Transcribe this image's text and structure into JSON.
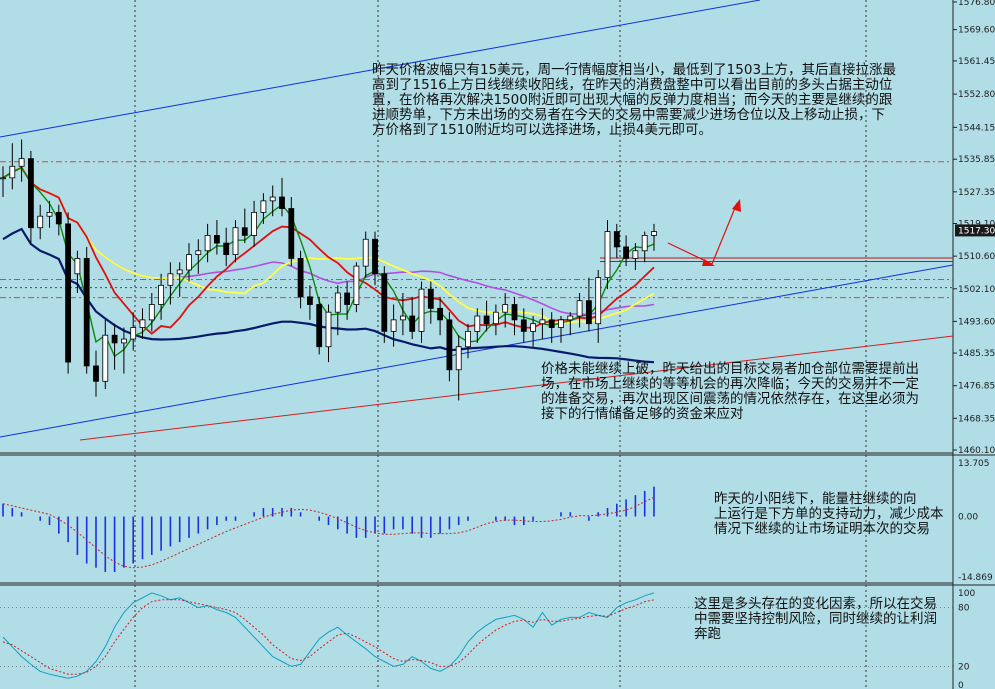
{
  "chart_data": [
    {
      "type": "candlestick",
      "ylim": [
        1460.1,
        1576.8
      ],
      "y_ticks": [
        "1576.80",
        "1569.60",
        "1561.45",
        "1552.80",
        "1544.15",
        "1535.85",
        "1527.35",
        "1519.10",
        "1510.60",
        "1502.10",
        "1493.60",
        "1485.35",
        "1476.85",
        "1468.35",
        "1460.10"
      ],
      "last_price": "1517.30",
      "grid": true,
      "dash_levels": [
        1535.2,
        1504.5,
        1499.8
      ],
      "candles": [
        [
          1531,
          1534,
          1526,
          1531
        ],
        [
          1531,
          1540,
          1528,
          1534
        ],
        [
          1534,
          1541,
          1530,
          1536
        ],
        [
          1536,
          1538,
          1514,
          1518
        ],
        [
          1518,
          1524,
          1515,
          1521
        ],
        [
          1521,
          1525,
          1518,
          1522
        ],
        [
          1522,
          1524,
          1516,
          1519
        ],
        [
          1519,
          1522,
          1480,
          1483
        ],
        [
          1506,
          1512,
          1501,
          1510
        ],
        [
          1510,
          1513,
          1480,
          1482
        ],
        [
          1482,
          1486,
          1474,
          1478
        ],
        [
          1478,
          1494,
          1476,
          1490
        ],
        [
          1490,
          1493,
          1481,
          1488
        ],
        [
          1488,
          1492,
          1480,
          1489
        ],
        [
          1489,
          1496,
          1486,
          1492
        ],
        [
          1492,
          1497,
          1489,
          1494
        ],
        [
          1494,
          1501,
          1491,
          1498
        ],
        [
          1498,
          1506,
          1494,
          1503
        ],
        [
          1503,
          1509,
          1498,
          1506
        ],
        [
          1506,
          1509,
          1500,
          1507
        ],
        [
          1507,
          1514,
          1504,
          1511
        ],
        [
          1511,
          1515,
          1506,
          1512
        ],
        [
          1512,
          1519,
          1509,
          1516
        ],
        [
          1516,
          1520,
          1511,
          1514
        ],
        [
          1514,
          1518,
          1508,
          1511
        ],
        [
          1511,
          1520,
          1509,
          1518
        ],
        [
          1518,
          1523,
          1514,
          1516
        ],
        [
          1516,
          1525,
          1513,
          1522
        ],
        [
          1522,
          1527,
          1519,
          1525
        ],
        [
          1525,
          1529,
          1521,
          1526
        ],
        [
          1526,
          1531,
          1521,
          1523
        ],
        [
          1523,
          1526,
          1508,
          1510
        ],
        [
          1510,
          1512,
          1497,
          1500
        ],
        [
          1500,
          1503,
          1494,
          1498
        ],
        [
          1498,
          1500,
          1485,
          1487
        ],
        [
          1487,
          1498,
          1483,
          1496
        ],
        [
          1496,
          1503,
          1490,
          1501
        ],
        [
          1501,
          1504,
          1494,
          1498
        ],
        [
          1498,
          1509,
          1496,
          1508
        ],
        [
          1508,
          1517,
          1505,
          1515
        ],
        [
          1515,
          1517,
          1503,
          1506
        ],
        [
          1506,
          1508,
          1488,
          1491
        ],
        [
          1491,
          1498,
          1487,
          1494
        ],
        [
          1494,
          1501,
          1490,
          1495
        ],
        [
          1495,
          1500,
          1489,
          1491
        ],
        [
          1491,
          1504,
          1488,
          1502
        ],
        [
          1502,
          1504,
          1493,
          1497
        ],
        [
          1497,
          1500,
          1490,
          1494
        ],
        [
          1494,
          1496,
          1478,
          1481
        ],
        [
          1481,
          1490,
          1473,
          1487
        ],
        [
          1487,
          1493,
          1484,
          1491
        ],
        [
          1491,
          1497,
          1488,
          1495
        ],
        [
          1495,
          1499,
          1491,
          1493
        ],
        [
          1493,
          1498,
          1490,
          1496
        ],
        [
          1496,
          1501,
          1492,
          1498
        ],
        [
          1498,
          1500,
          1490,
          1494
        ],
        [
          1494,
          1497,
          1488,
          1491
        ],
        [
          1491,
          1495,
          1487,
          1493
        ],
        [
          1493,
          1497,
          1489,
          1494
        ],
        [
          1494,
          1496,
          1488,
          1492
        ],
        [
          1492,
          1495,
          1488,
          1494
        ],
        [
          1494,
          1496,
          1490,
          1495
        ],
        [
          1495,
          1501,
          1492,
          1499
        ],
        [
          1499,
          1505,
          1491,
          1493
        ],
        [
          1493,
          1507,
          1488,
          1505
        ],
        [
          1505,
          1520,
          1502,
          1517
        ],
        [
          1517,
          1519,
          1510,
          1513
        ],
        [
          1513,
          1516,
          1508,
          1510
        ],
        [
          1510,
          1514,
          1507,
          1512
        ],
        [
          1512,
          1517,
          1509,
          1516
        ],
        [
          1516,
          1519,
          1512,
          1517
        ]
      ]
    },
    {
      "type": "histogram",
      "ylim": [
        -14.869,
        13.705
      ],
      "y_ticks": [
        "13.705",
        "0.00",
        "-14.869"
      ],
      "values": [
        3,
        2,
        1,
        0,
        -1,
        -2,
        -4,
        -6,
        -9,
        -11,
        -12,
        -13,
        -13,
        -12,
        -11,
        -10,
        -9,
        -8,
        -7,
        -6,
        -5,
        -4,
        -3,
        -2,
        -1,
        -1,
        0,
        1,
        2,
        2,
        2,
        2,
        1,
        0,
        -1,
        -2,
        -3,
        -4,
        -5,
        -5,
        -4,
        -4,
        -3,
        -3,
        -4,
        -5,
        -5,
        -4,
        -3,
        -2,
        -1,
        0,
        0,
        -1,
        -1,
        -2,
        -2,
        -1,
        0,
        0,
        1,
        1,
        0,
        -1,
        1,
        2,
        3,
        4,
        5,
        6,
        7
      ]
    },
    {
      "type": "line",
      "ylim": [
        0,
        100
      ],
      "y_ticks": [
        "100",
        "80",
        "20",
        "0"
      ],
      "series": [
        {
          "values": [
            50,
            40,
            30,
            22,
            15,
            12,
            10,
            8,
            10,
            15,
            25,
            40,
            60,
            75,
            85,
            90,
            95,
            92,
            88,
            90,
            85,
            80,
            82,
            78,
            75,
            70,
            60,
            50,
            40,
            30,
            25,
            20,
            22,
            35,
            48,
            55,
            60,
            52,
            45,
            38,
            30,
            25,
            20,
            22,
            30,
            25,
            18,
            15,
            20,
            30,
            45,
            55,
            62,
            68,
            70,
            72,
            68,
            60,
            75,
            62,
            68,
            70,
            70,
            75,
            72,
            70,
            80,
            85,
            88,
            92,
            95
          ]
        },
        {
          "values": [
            45,
            42,
            36,
            30,
            24,
            18,
            15,
            12,
            12,
            14,
            20,
            30,
            45,
            58,
            70,
            80,
            86,
            88,
            88,
            88,
            86,
            84,
            82,
            80,
            78,
            75,
            68,
            60,
            52,
            42,
            35,
            28,
            26,
            30,
            38,
            45,
            52,
            54,
            50,
            45,
            40,
            34,
            28,
            25,
            27,
            26,
            24,
            20,
            20,
            24,
            32,
            42,
            50,
            57,
            62,
            66,
            67,
            65,
            68,
            66,
            66,
            68,
            69,
            71,
            72,
            71,
            75,
            79,
            82,
            86,
            88
          ]
        }
      ]
    }
  ],
  "notes": {
    "main": "昨天价格波幅只有15美元，周一行情幅度相当小，最低到了1503上方，其后直接拉涨最\n高到了1516上方日线继续收阳线，在昨天的消费盘整中可以看出目前的多头占据主动位\n置，在价格再次解决1500附近即可出现大幅的反弹力度相当；而今天的主要是继续的跟\n进顺势单，下方未出场的交易者在今天的交易中需要减少进场仓位以及上移动止损，下\n方价格到了1510附近均可以选择进场，止损4美元即可。",
    "second": "价格未能继续上破，昨天给出的目标交易者加仓部位需要提前出\n场，在市场上继续的等等机会的再次降临；今天的交易并不一定\n的准备交易，再次出现区间震荡的情况依然存在，在这里必须为\n接下的行情储备足够的资金来应对",
    "macd": "昨天的小阳线下，能量柱继续的向\n上运行是下方单的支持动力，减少成本\n情况下继续的让市场证明本次的交易",
    "kd": "这里是多头存在的变化因素，所以在交易\n中需要坚持控制风险，同时继续的让利润\n奔跑"
  },
  "colors": {
    "background": "#b1dde6",
    "bull_candle": "#ffffff",
    "bear_candle": "#000000",
    "ma_green": "#0a8a0a",
    "ma_red": "#e01010",
    "ma_yellow": "#ffff44",
    "ma_purple": "#b050e0",
    "ma_navy": "#0a1a6a",
    "trend_blue": "#1030e0",
    "trend_red": "#d02020",
    "macd_bar": "#1a30e0",
    "kd_main": "#10a0c0",
    "kd_signal": "#d02020"
  }
}
